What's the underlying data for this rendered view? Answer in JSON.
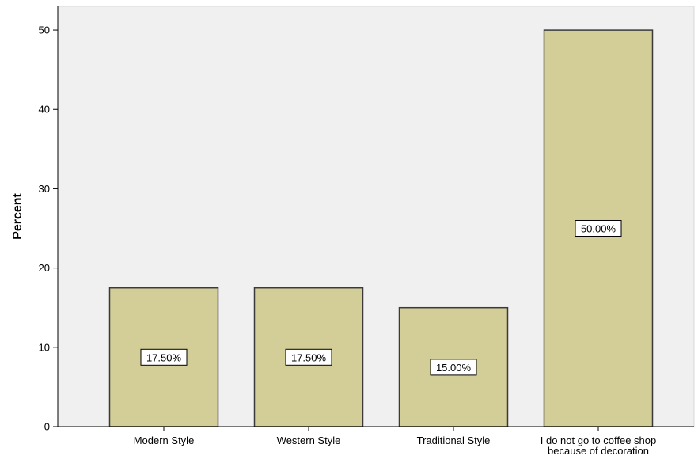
{
  "chart_data": {
    "type": "bar",
    "title": "",
    "xlabel": "",
    "ylabel": "Percent",
    "categories": [
      [
        "Modern Style"
      ],
      [
        "Western Style"
      ],
      [
        "Traditional Style"
      ],
      [
        "I do not go to coffee shop",
        "because of decoration"
      ]
    ],
    "values": [
      17.5,
      17.5,
      15.0,
      50.0
    ],
    "data_labels": [
      "17.50%",
      "17.50%",
      "15.00%",
      "50.00%"
    ],
    "ylim": [
      0,
      53
    ],
    "yticks": [
      0,
      10,
      20,
      30,
      40,
      50
    ],
    "grid": false,
    "legend": "none",
    "colors": {
      "plot_background": "#f0f0f0",
      "bar_fill": "#d3cd97",
      "bar_stroke": "#3a3a3a",
      "axis": "#000000",
      "label_box_fill": "#ffffff"
    }
  }
}
